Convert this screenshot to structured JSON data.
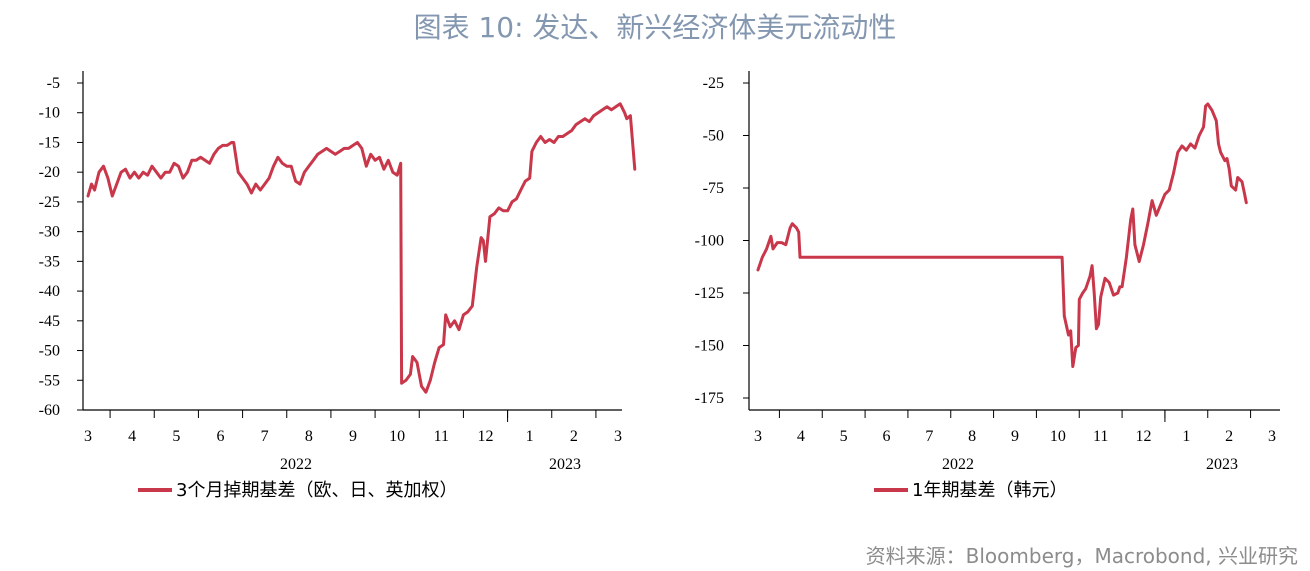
{
  "title": "图表 10: 发达、新兴经济体美元流动性",
  "source": "资料来源：Bloomberg，Macrobond, 兴业研究",
  "colors": {
    "series": "#c9374b",
    "axis": "#000000",
    "title": "#8497b0",
    "source": "#8c8c8c"
  },
  "chart_data": [
    {
      "type": "line",
      "xlabel": "",
      "ylabel": "",
      "ylim": [
        -60,
        -5
      ],
      "yticks": [
        -5,
        -10,
        -15,
        -20,
        -25,
        -30,
        -35,
        -40,
        -45,
        -50,
        -55,
        -60
      ],
      "month_labels": [
        "3",
        "4",
        "5",
        "6",
        "7",
        "8",
        "9",
        "10",
        "11",
        "12",
        "1",
        "2",
        "3"
      ],
      "year_labels": [
        "2022",
        "2023"
      ],
      "x_range": [
        "2022-03",
        "2023-03"
      ],
      "legend": "top-bottom",
      "series": [
        {
          "name": "3个月掉期基差（欧、日、英加权）",
          "values": [
            [
              0.0,
              -24
            ],
            [
              0.08,
              -22
            ],
            [
              0.15,
              -23
            ],
            [
              0.25,
              -20
            ],
            [
              0.35,
              -19
            ],
            [
              0.45,
              -21
            ],
            [
              0.55,
              -24
            ],
            [
              0.65,
              -22
            ],
            [
              0.75,
              -20
            ],
            [
              0.85,
              -19.5
            ],
            [
              0.95,
              -21
            ],
            [
              1.05,
              -20
            ],
            [
              1.15,
              -21
            ],
            [
              1.25,
              -20
            ],
            [
              1.35,
              -20.5
            ],
            [
              1.45,
              -19
            ],
            [
              1.55,
              -20
            ],
            [
              1.65,
              -21
            ],
            [
              1.75,
              -20
            ],
            [
              1.85,
              -20
            ],
            [
              1.95,
              -18.5
            ],
            [
              2.05,
              -19
            ],
            [
              2.15,
              -21
            ],
            [
              2.25,
              -20
            ],
            [
              2.35,
              -18
            ],
            [
              2.45,
              -18
            ],
            [
              2.55,
              -17.5
            ],
            [
              2.65,
              -18
            ],
            [
              2.75,
              -18.5
            ],
            [
              2.85,
              -17
            ],
            [
              2.95,
              -16
            ],
            [
              3.05,
              -15.5
            ],
            [
              3.15,
              -15.5
            ],
            [
              3.25,
              -15
            ],
            [
              3.3,
              -15
            ],
            [
              3.4,
              -20
            ],
            [
              3.5,
              -21
            ],
            [
              3.6,
              -22
            ],
            [
              3.7,
              -23.5
            ],
            [
              3.8,
              -22
            ],
            [
              3.9,
              -23
            ],
            [
              4.0,
              -22
            ],
            [
              4.1,
              -21
            ],
            [
              4.2,
              -19
            ],
            [
              4.3,
              -17.5
            ],
            [
              4.4,
              -18.5
            ],
            [
              4.5,
              -19
            ],
            [
              4.6,
              -19
            ],
            [
              4.7,
              -21.5
            ],
            [
              4.8,
              -22
            ],
            [
              4.9,
              -20
            ],
            [
              5.0,
              -19
            ],
            [
              5.1,
              -18
            ],
            [
              5.2,
              -17
            ],
            [
              5.3,
              -16.5
            ],
            [
              5.4,
              -16
            ],
            [
              5.5,
              -16.5
            ],
            [
              5.6,
              -17
            ],
            [
              5.7,
              -16.5
            ],
            [
              5.8,
              -16
            ],
            [
              5.9,
              -16
            ],
            [
              6.0,
              -15.5
            ],
            [
              6.1,
              -15
            ],
            [
              6.2,
              -16
            ],
            [
              6.3,
              -19
            ],
            [
              6.4,
              -17
            ],
            [
              6.5,
              -18
            ],
            [
              6.6,
              -17.5
            ],
            [
              6.7,
              -19.5
            ],
            [
              6.8,
              -18
            ],
            [
              6.9,
              -20
            ],
            [
              7.0,
              -20.5
            ],
            [
              7.08,
              -18.5
            ],
            [
              7.1,
              -55.5
            ],
            [
              7.2,
              -55
            ],
            [
              7.3,
              -54
            ],
            [
              7.35,
              -51
            ],
            [
              7.45,
              -52
            ],
            [
              7.55,
              -56
            ],
            [
              7.65,
              -57
            ],
            [
              7.75,
              -55
            ],
            [
              7.85,
              -52
            ],
            [
              7.95,
              -49.5
            ],
            [
              8.05,
              -49
            ],
            [
              8.1,
              -44
            ],
            [
              8.2,
              -46
            ],
            [
              8.3,
              -45
            ],
            [
              8.4,
              -46.5
            ],
            [
              8.5,
              -44
            ],
            [
              8.6,
              -43.5
            ],
            [
              8.7,
              -42.5
            ],
            [
              8.8,
              -36
            ],
            [
              8.9,
              -31
            ],
            [
              8.95,
              -31.5
            ],
            [
              9.0,
              -35
            ],
            [
              9.1,
              -27.5
            ],
            [
              9.2,
              -27
            ],
            [
              9.3,
              -26
            ],
            [
              9.4,
              -26.5
            ],
            [
              9.5,
              -26.5
            ],
            [
              9.6,
              -25
            ],
            [
              9.7,
              -24.5
            ],
            [
              9.8,
              -23
            ],
            [
              9.9,
              -21.5
            ],
            [
              10.0,
              -21
            ],
            [
              10.05,
              -16.5
            ],
            [
              10.15,
              -15
            ],
            [
              10.25,
              -14
            ],
            [
              10.35,
              -15
            ],
            [
              10.45,
              -14.5
            ],
            [
              10.55,
              -15
            ],
            [
              10.65,
              -14
            ],
            [
              10.75,
              -14
            ],
            [
              10.85,
              -13.5
            ],
            [
              10.95,
              -13
            ],
            [
              11.05,
              -12
            ],
            [
              11.15,
              -11.5
            ],
            [
              11.25,
              -11
            ],
            [
              11.35,
              -11.5
            ],
            [
              11.45,
              -10.5
            ],
            [
              11.55,
              -10
            ],
            [
              11.65,
              -9.5
            ],
            [
              11.75,
              -9
            ],
            [
              11.85,
              -9.5
            ],
            [
              11.95,
              -9
            ],
            [
              12.05,
              -8.5
            ],
            [
              12.15,
              -10
            ],
            [
              12.2,
              -11
            ],
            [
              12.28,
              -10.5
            ],
            [
              12.38,
              -19.5
            ]
          ]
        }
      ]
    },
    {
      "type": "line",
      "xlabel": "",
      "ylabel": "",
      "ylim": [
        -175,
        -25
      ],
      "yticks": [
        -25,
        -50,
        -75,
        -100,
        -125,
        -150,
        -175
      ],
      "month_labels": [
        "3",
        "4",
        "5",
        "6",
        "7",
        "8",
        "9",
        "10",
        "11",
        "12",
        "1",
        "2",
        "3"
      ],
      "year_labels": [
        "2022",
        "2023"
      ],
      "x_range": [
        "2022-03",
        "2023-03"
      ],
      "legend": "bottom",
      "series": [
        {
          "name": "1年期基差（韩元）",
          "values": [
            [
              0.0,
              -114
            ],
            [
              0.1,
              -108
            ],
            [
              0.2,
              -104
            ],
            [
              0.3,
              -98
            ],
            [
              0.35,
              -104
            ],
            [
              0.45,
              -101
            ],
            [
              0.55,
              -101
            ],
            [
              0.65,
              -102
            ],
            [
              0.75,
              -94
            ],
            [
              0.8,
              -92
            ],
            [
              0.9,
              -94
            ],
            [
              0.95,
              -96
            ],
            [
              0.98,
              -108
            ],
            [
              1.1,
              -108
            ],
            [
              2.0,
              -108
            ],
            [
              3.0,
              -108
            ],
            [
              4.0,
              -108
            ],
            [
              5.0,
              -108
            ],
            [
              6.0,
              -108
            ],
            [
              7.0,
              -108
            ],
            [
              7.1,
              -108
            ],
            [
              7.15,
              -136
            ],
            [
              7.25,
              -145
            ],
            [
              7.3,
              -143
            ],
            [
              7.35,
              -160
            ],
            [
              7.42,
              -151
            ],
            [
              7.48,
              -150
            ],
            [
              7.5,
              -128
            ],
            [
              7.58,
              -125
            ],
            [
              7.65,
              -123
            ],
            [
              7.75,
              -117
            ],
            [
              7.8,
              -112
            ],
            [
              7.85,
              -125
            ],
            [
              7.9,
              -142
            ],
            [
              7.95,
              -140
            ],
            [
              8.0,
              -127
            ],
            [
              8.1,
              -118
            ],
            [
              8.2,
              -120
            ],
            [
              8.3,
              -126
            ],
            [
              8.4,
              -125
            ],
            [
              8.45,
              -122
            ],
            [
              8.5,
              -122
            ],
            [
              8.6,
              -108
            ],
            [
              8.7,
              -90
            ],
            [
              8.75,
              -85
            ],
            [
              8.8,
              -102
            ],
            [
              8.9,
              -110
            ],
            [
              9.0,
              -102
            ],
            [
              9.1,
              -92
            ],
            [
              9.2,
              -81
            ],
            [
              9.3,
              -88
            ],
            [
              9.4,
              -83
            ],
            [
              9.5,
              -78
            ],
            [
              9.6,
              -76
            ],
            [
              9.7,
              -68
            ],
            [
              9.8,
              -58
            ],
            [
              9.9,
              -55
            ],
            [
              10.0,
              -57
            ],
            [
              10.1,
              -54
            ],
            [
              10.2,
              -56
            ],
            [
              10.3,
              -50
            ],
            [
              10.4,
              -46
            ],
            [
              10.45,
              -36
            ],
            [
              10.5,
              -35
            ],
            [
              10.6,
              -38
            ],
            [
              10.7,
              -43
            ],
            [
              10.75,
              -54
            ],
            [
              10.8,
              -58
            ],
            [
              10.9,
              -62
            ],
            [
              10.95,
              -61
            ],
            [
              11.0,
              -66
            ],
            [
              11.05,
              -74
            ],
            [
              11.15,
              -76
            ],
            [
              11.2,
              -70
            ],
            [
              11.3,
              -72
            ],
            [
              11.35,
              -77
            ],
            [
              11.4,
              -82
            ]
          ]
        }
      ]
    }
  ]
}
